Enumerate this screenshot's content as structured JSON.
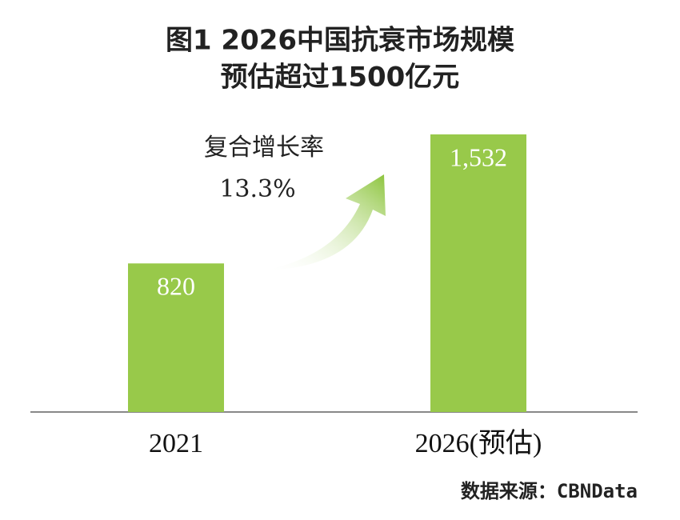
{
  "chart_data": {
    "type": "bar",
    "title": [
      "图1 2026中国抗衰市场规模",
      "预估超过1500亿元"
    ],
    "annotation": [
      "复合增长率",
      "13.3%"
    ],
    "categories": [
      "2021",
      "2026(预估)"
    ],
    "values": [
      820,
      1532
    ],
    "value_labels": [
      "820",
      "1,532"
    ],
    "color": "#98c94a",
    "source": "数据来源：CBNData"
  }
}
